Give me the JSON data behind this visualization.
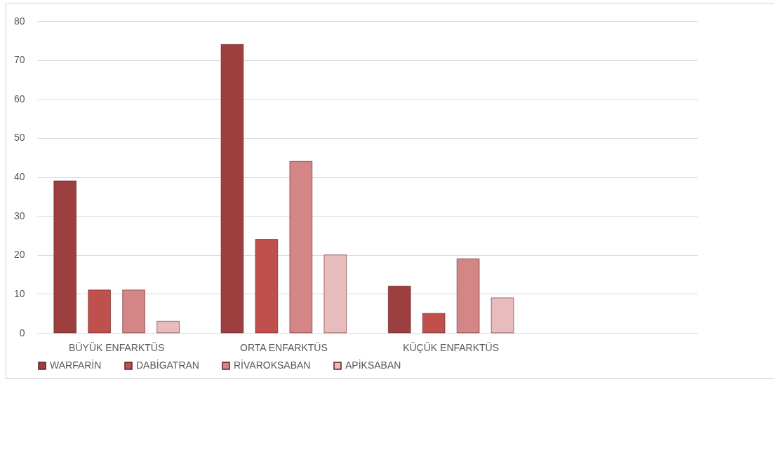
{
  "chart_data": {
    "type": "bar",
    "categories": [
      "BÜYÜK ENFARKTÜS",
      "ORTA ENFARKTÜS",
      "KÜÇÜK ENFARKTÜS",
      null
    ],
    "series": [
      {
        "name": "WARFARİN",
        "color": "#9e3f3f",
        "values": [
          39,
          74,
          12,
          null
        ]
      },
      {
        "name": "DABİGATRAN",
        "color": "#c0504d",
        "values": [
          11,
          24,
          5,
          null
        ]
      },
      {
        "name": "RİVAROKSABAN",
        "color": "#d48585",
        "values": [
          11,
          44,
          19,
          null
        ]
      },
      {
        "name": "APİKSABAN",
        "color": "#e8bcbc",
        "values": [
          3,
          20,
          9,
          null
        ]
      }
    ],
    "ylim": [
      0,
      80
    ],
    "yticks": [
      0,
      10,
      20,
      30,
      40,
      50,
      60,
      70,
      80
    ],
    "grid": "y",
    "legend": "bottom"
  }
}
